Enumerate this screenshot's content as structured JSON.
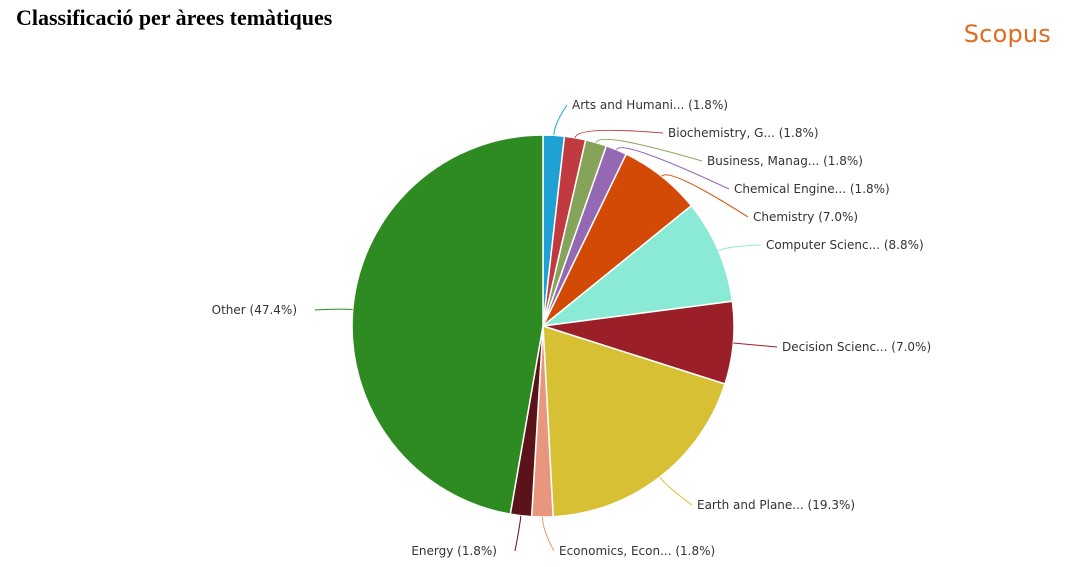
{
  "page": {
    "title": "Classificació per àrees temàtiques",
    "brand": "Scopus",
    "brand_color": "#e06c1f"
  },
  "chart_data": {
    "type": "pie",
    "title": "",
    "slices": [
      {
        "label": "Arts and Humani... (1.8%)",
        "value": 1.8,
        "color": "#1fa1d6"
      },
      {
        "label": "Biochemistry, G... (1.8%)",
        "value": 1.8,
        "color": "#c03a3f"
      },
      {
        "label": "Business, Manag... (1.8%)",
        "value": 1.8,
        "color": "#86a35a"
      },
      {
        "label": "Chemical Engine... (1.8%)",
        "value": 1.8,
        "color": "#9468b3"
      },
      {
        "label": "Chemistry (7.0%)",
        "value": 7.0,
        "color": "#d24a05"
      },
      {
        "label": "Computer Scienc... (8.8%)",
        "value": 8.8,
        "color": "#8aead5"
      },
      {
        "label": "Decision Scienc... (7.0%)",
        "value": 7.0,
        "color": "#9b1f28"
      },
      {
        "label": "Earth and Plane... (19.3%)",
        "value": 19.3,
        "color": "#d8c034"
      },
      {
        "label": "Economics, Econ... (1.8%)",
        "value": 1.8,
        "color": "#e8977e"
      },
      {
        "label": "Energy (1.8%)",
        "value": 1.8,
        "color": "#5a1318"
      },
      {
        "label": "Other (47.4%)",
        "value": 47.4,
        "color": "#2e8b22"
      }
    ]
  }
}
